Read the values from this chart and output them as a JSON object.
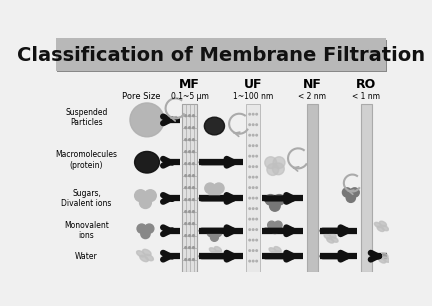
{
  "title": "Classification of Membrane Filtration",
  "title_fontsize": 14,
  "title_bg_color": "#b8b8b8",
  "title_text_color": "#111111",
  "bg_color": "#f0f0f0",
  "membrane_types": [
    "MF",
    "UF",
    "NF",
    "RO"
  ],
  "pore_sizes": [
    "0.1~5 μm",
    "1~100 nm",
    "< 2 nm",
    "< 1 nm"
  ],
  "row_labels": [
    "Suspended\nParticles",
    "Macromolecules\n(protein)",
    "Sugars,\nDivalent ions",
    "Monovalent\nions",
    "Water"
  ]
}
